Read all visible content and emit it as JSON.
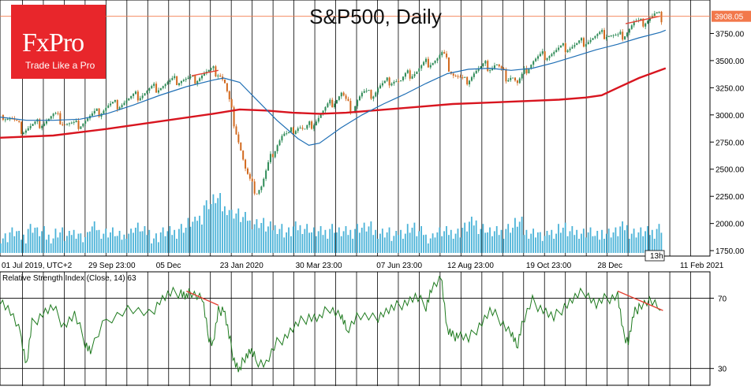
{
  "chart_data": [
    {
      "type": "candlestick",
      "title": "S&P500, Daily",
      "ylim": [
        1700,
        4000
      ],
      "y_ticks": [
        "3750.00",
        "3500.00",
        "3250.00",
        "3000.00",
        "2750.00",
        "2500.00",
        "2250.00",
        "2000.00",
        "1750.00"
      ],
      "y_tick_values": [
        3750,
        3500,
        3250,
        3000,
        2750,
        2500,
        2250,
        2000,
        1750
      ],
      "x_ticks": [
        "01 Jul 2019, UTC+2",
        "29 Sep 23:00",
        "05 Dec",
        "23 Jan 2020",
        "30 Mar 23:00",
        "07 Jun 23:00",
        "12 Aug 23:00",
        "19 Oct 23:00",
        "28 Dec",
        "11 Feb 2021"
      ],
      "x_tick_positions": [
        0.0,
        0.163,
        0.29,
        0.41,
        0.552,
        0.704,
        0.837,
        0.985,
        1.119,
        1.274
      ],
      "current_price_label": "3908.05",
      "current_price": 3908.05,
      "time_remaining_label": "13h",
      "price_path": [
        [
          0,
          3000
        ],
        [
          0.02,
          2960
        ],
        [
          0.04,
          2860
        ],
        [
          0.06,
          2900
        ],
        [
          0.08,
          2940
        ],
        [
          0.1,
          2990
        ],
        [
          0.12,
          2930
        ],
        [
          0.14,
          2900
        ],
        [
          0.16,
          2960
        ],
        [
          0.18,
          3010
        ],
        [
          0.2,
          3080
        ],
        [
          0.22,
          3100
        ],
        [
          0.24,
          3140
        ],
        [
          0.26,
          3180
        ],
        [
          0.28,
          3230
        ],
        [
          0.3,
          3270
        ],
        [
          0.32,
          3300
        ],
        [
          0.34,
          3330
        ],
        [
          0.36,
          3320
        ],
        [
          0.38,
          3380
        ],
        [
          0.4,
          3400
        ],
        [
          0.41,
          3390
        ],
        [
          0.42,
          3300
        ],
        [
          0.43,
          3100
        ],
        [
          0.44,
          2900
        ],
        [
          0.45,
          2700
        ],
        [
          0.46,
          2480
        ],
        [
          0.47,
          2350
        ],
        [
          0.48,
          2300
        ],
        [
          0.49,
          2350
        ],
        [
          0.5,
          2500
        ],
        [
          0.51,
          2650
        ],
        [
          0.52,
          2750
        ],
        [
          0.53,
          2820
        ],
        [
          0.54,
          2800
        ],
        [
          0.55,
          2870
        ],
        [
          0.56,
          2900
        ],
        [
          0.57,
          2850
        ],
        [
          0.58,
          2900
        ],
        [
          0.59,
          2950
        ],
        [
          0.6,
          3000
        ],
        [
          0.61,
          3050
        ],
        [
          0.62,
          3100
        ],
        [
          0.63,
          3150
        ],
        [
          0.64,
          3200
        ],
        [
          0.65,
          3100
        ],
        [
          0.66,
          3050
        ],
        [
          0.67,
          3150
        ],
        [
          0.68,
          3200
        ],
        [
          0.69,
          3180
        ],
        [
          0.7,
          3200
        ],
        [
          0.71,
          3260
        ],
        [
          0.72,
          3280
        ],
        [
          0.73,
          3320
        ],
        [
          0.74,
          3330
        ],
        [
          0.75,
          3300
        ],
        [
          0.76,
          3350
        ],
        [
          0.77,
          3380
        ],
        [
          0.78,
          3400
        ],
        [
          0.79,
          3440
        ],
        [
          0.8,
          3480
        ],
        [
          0.81,
          3500
        ],
        [
          0.82,
          3520
        ],
        [
          0.83,
          3560
        ],
        [
          0.84,
          3450
        ],
        [
          0.85,
          3380
        ],
        [
          0.86,
          3340
        ],
        [
          0.87,
          3300
        ],
        [
          0.88,
          3350
        ],
        [
          0.89,
          3400
        ],
        [
          0.9,
          3420
        ],
        [
          0.91,
          3450
        ],
        [
          0.92,
          3440
        ],
        [
          0.93,
          3470
        ],
        [
          0.94,
          3400
        ],
        [
          0.95,
          3350
        ],
        [
          0.96,
          3370
        ],
        [
          0.97,
          3280
        ],
        [
          0.98,
          3350
        ],
        [
          0.99,
          3450
        ],
        [
          1.0,
          3500
        ],
        [
          1.02,
          3550
        ],
        [
          1.04,
          3580
        ],
        [
          1.06,
          3620
        ],
        [
          1.08,
          3640
        ],
        [
          1.1,
          3690
        ],
        [
          1.12,
          3720
        ],
        [
          1.14,
          3750
        ],
        [
          1.16,
          3710
        ],
        [
          1.17,
          3750
        ],
        [
          1.18,
          3800
        ],
        [
          1.19,
          3850
        ],
        [
          1.2,
          3830
        ],
        [
          1.21,
          3870
        ],
        [
          1.22,
          3900
        ],
        [
          1.23,
          3920
        ],
        [
          1.24,
          3900
        ],
        [
          1.245,
          3908
        ]
      ],
      "ma_fast_path": [
        [
          0,
          2980
        ],
        [
          0.05,
          2950
        ],
        [
          0.1,
          2950
        ],
        [
          0.15,
          2960
        ],
        [
          0.2,
          3010
        ],
        [
          0.25,
          3090
        ],
        [
          0.3,
          3180
        ],
        [
          0.35,
          3260
        ],
        [
          0.4,
          3320
        ],
        [
          0.42,
          3340
        ],
        [
          0.45,
          3300
        ],
        [
          0.48,
          3150
        ],
        [
          0.52,
          2950
        ],
        [
          0.56,
          2780
        ],
        [
          0.58,
          2720
        ],
        [
          0.6,
          2740
        ],
        [
          0.64,
          2880
        ],
        [
          0.68,
          3000
        ],
        [
          0.72,
          3100
        ],
        [
          0.76,
          3190
        ],
        [
          0.8,
          3290
        ],
        [
          0.84,
          3380
        ],
        [
          0.88,
          3420
        ],
        [
          0.92,
          3430
        ],
        [
          0.96,
          3410
        ],
        [
          1.0,
          3430
        ],
        [
          1.04,
          3480
        ],
        [
          1.08,
          3540
        ],
        [
          1.12,
          3600
        ],
        [
          1.16,
          3650
        ],
        [
          1.2,
          3710
        ],
        [
          1.24,
          3760
        ],
        [
          1.25,
          3780
        ]
      ],
      "ma_slow_path": [
        [
          0,
          2790
        ],
        [
          0.1,
          2810
        ],
        [
          0.2,
          2870
        ],
        [
          0.3,
          2940
        ],
        [
          0.4,
          3010
        ],
        [
          0.45,
          3050
        ],
        [
          0.5,
          3040
        ],
        [
          0.55,
          3020
        ],
        [
          0.6,
          3010
        ],
        [
          0.65,
          3020
        ],
        [
          0.7,
          3040
        ],
        [
          0.75,
          3060
        ],
        [
          0.8,
          3080
        ],
        [
          0.85,
          3100
        ],
        [
          0.9,
          3110
        ],
        [
          0.95,
          3120
        ],
        [
          1.0,
          3130
        ],
        [
          1.05,
          3140
        ],
        [
          1.1,
          3160
        ],
        [
          1.13,
          3180
        ],
        [
          1.16,
          3250
        ],
        [
          1.2,
          3340
        ],
        [
          1.25,
          3430
        ]
      ],
      "divergence_lines": [
        [
          [
            0.36,
            3360
          ],
          [
            0.41,
            3410
          ]
        ],
        [
          [
            1.175,
            3840
          ],
          [
            1.24,
            3910
          ]
        ]
      ],
      "volume_profile": [
        2,
        3,
        2,
        4,
        3,
        2,
        3,
        2,
        3,
        2,
        4,
        3,
        3,
        2,
        3,
        4,
        3,
        2,
        3,
        3,
        4,
        5,
        6,
        9,
        10,
        8,
        7,
        6,
        5,
        5,
        4,
        4,
        3,
        4,
        4,
        3,
        3,
        4,
        3,
        3,
        4,
        4,
        3,
        3,
        2,
        3,
        4,
        3,
        2,
        3,
        3,
        3,
        4,
        5,
        4,
        3,
        3,
        4,
        5,
        3,
        3,
        2,
        3,
        4,
        3,
        3,
        3,
        2,
        3,
        3,
        4,
        3,
        3,
        3,
        4
      ]
    },
    {
      "type": "line",
      "title": "Relative Strength Index (Close, 14) 63",
      "ylim": [
        20,
        85
      ],
      "y_ticks": [
        "70",
        "30"
      ],
      "y_tick_values": [
        70,
        30
      ],
      "rsi_path": [
        [
          0,
          70
        ],
        [
          0.02,
          62
        ],
        [
          0.04,
          48
        ],
        [
          0.05,
          32
        ],
        [
          0.06,
          55
        ],
        [
          0.08,
          62
        ],
        [
          0.1,
          64
        ],
        [
          0.12,
          55
        ],
        [
          0.14,
          60
        ],
        [
          0.16,
          45
        ],
        [
          0.17,
          40
        ],
        [
          0.2,
          58
        ],
        [
          0.24,
          64
        ],
        [
          0.28,
          60
        ],
        [
          0.3,
          69
        ],
        [
          0.32,
          72
        ],
        [
          0.34,
          74
        ],
        [
          0.35,
          70
        ],
        [
          0.36,
          74
        ],
        [
          0.38,
          70
        ],
        [
          0.39,
          50
        ],
        [
          0.4,
          44
        ],
        [
          0.41,
          62
        ],
        [
          0.42,
          65
        ],
        [
          0.43,
          48
        ],
        [
          0.44,
          35
        ],
        [
          0.45,
          28
        ],
        [
          0.46,
          37
        ],
        [
          0.47,
          40
        ],
        [
          0.48,
          35
        ],
        [
          0.5,
          33
        ],
        [
          0.52,
          44
        ],
        [
          0.54,
          50
        ],
        [
          0.56,
          55
        ],
        [
          0.58,
          60
        ],
        [
          0.6,
          58
        ],
        [
          0.62,
          65
        ],
        [
          0.64,
          60
        ],
        [
          0.65,
          52
        ],
        [
          0.67,
          60
        ],
        [
          0.7,
          58
        ],
        [
          0.72,
          62
        ],
        [
          0.74,
          64
        ],
        [
          0.76,
          68
        ],
        [
          0.78,
          70
        ],
        [
          0.8,
          66
        ],
        [
          0.81,
          75
        ],
        [
          0.83,
          80
        ],
        [
          0.84,
          52
        ],
        [
          0.85,
          48
        ],
        [
          0.86,
          50
        ],
        [
          0.88,
          46
        ],
        [
          0.9,
          55
        ],
        [
          0.92,
          62
        ],
        [
          0.94,
          58
        ],
        [
          0.96,
          50
        ],
        [
          0.97,
          42
        ],
        [
          0.98,
          55
        ],
        [
          1.0,
          68
        ],
        [
          1.02,
          64
        ],
        [
          1.04,
          58
        ],
        [
          1.06,
          66
        ],
        [
          1.08,
          70
        ],
        [
          1.1,
          74
        ],
        [
          1.12,
          66
        ],
        [
          1.14,
          70
        ],
        [
          1.16,
          72
        ],
        [
          1.17,
          50
        ],
        [
          1.18,
          46
        ],
        [
          1.19,
          60
        ],
        [
          1.2,
          66
        ],
        [
          1.22,
          68
        ],
        [
          1.24,
          63
        ]
      ],
      "divergence_line": [
        [
          0.35,
          74
        ],
        [
          0.41,
          66
        ]
      ],
      "divergence_line_2": [
        [
          1.16,
          74
        ],
        [
          1.245,
          63
        ]
      ]
    }
  ],
  "logo": {
    "brand": "FxPro",
    "tagline": "Trade Like a Pro"
  },
  "colors": {
    "candle_up": "#2e8b57",
    "candle_down": "#d2691e",
    "ma_fast": "#1f6fb5",
    "ma_slow": "#d8151f",
    "volume": "#4bb3d8",
    "rsi": "#1e7a1e",
    "divergence": "#e34234",
    "price_tag": "#f2784b"
  }
}
